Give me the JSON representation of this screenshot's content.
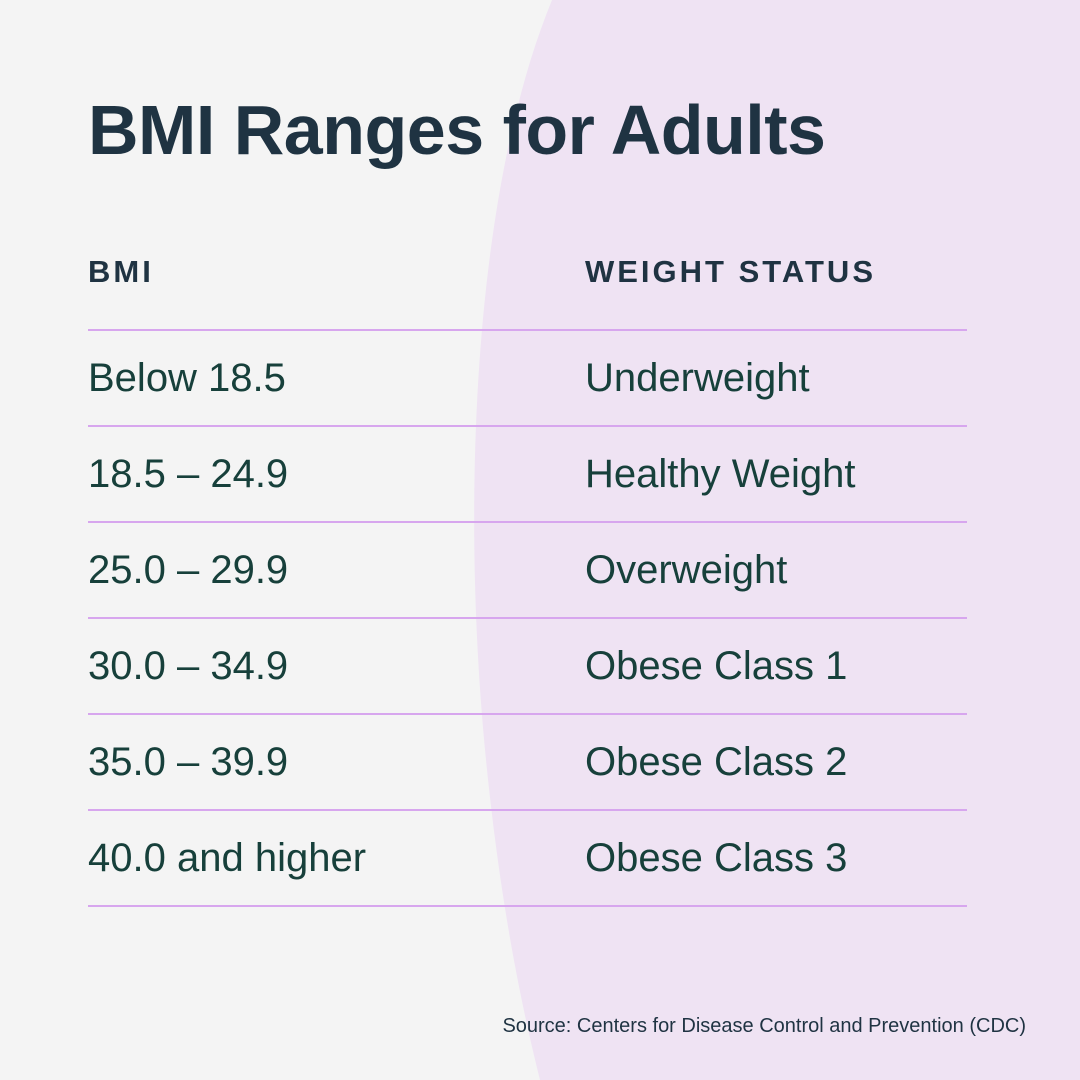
{
  "title": "BMI Ranges for Adults",
  "table": {
    "headers": [
      "BMI",
      "WEIGHT STATUS"
    ],
    "rows": [
      [
        "Below 18.5",
        "Underweight"
      ],
      [
        "18.5 – 24.9",
        "Healthy Weight"
      ],
      [
        "25.0 – 29.9",
        "Overweight"
      ],
      [
        "30.0 – 34.9",
        "Obese Class 1"
      ],
      [
        "35.0 – 39.9",
        "Obese Class 2"
      ],
      [
        "40.0 and higher",
        "Obese Class 3"
      ]
    ]
  },
  "source": "Source: Centers for Disease Control and Prevention (CDC)",
  "colors": {
    "background": "#f4f4f4",
    "accent_shape": "#efe3f3",
    "rule": "#d7a6ee",
    "heading": "#1f3342",
    "body_text": "#17403b"
  }
}
